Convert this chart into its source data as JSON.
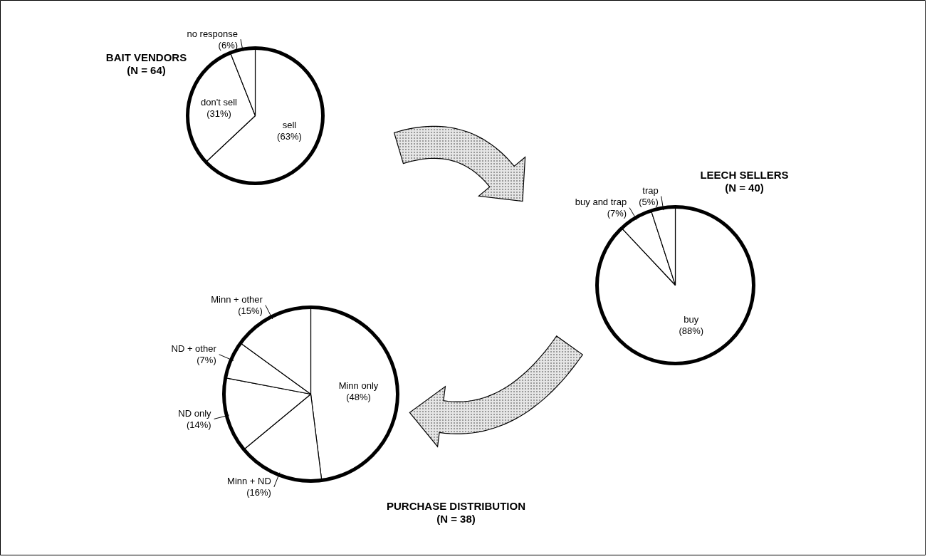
{
  "chart_data": [
    {
      "type": "pie",
      "title": "BAIT VENDORS",
      "subtitle": "(N = 64)",
      "categories": [
        "sell",
        "don't sell",
        "no response"
      ],
      "values": [
        63,
        31,
        6
      ],
      "colors": [
        "#ffffff",
        "#ffffff",
        "#ffffff"
      ],
      "value_labels": [
        "(63%)",
        "(31%)",
        "(6%)"
      ]
    },
    {
      "type": "pie",
      "title": "LEECH SELLERS",
      "subtitle": "(N = 40)",
      "categories": [
        "buy",
        "buy and trap",
        "trap"
      ],
      "values": [
        88,
        7,
        5
      ],
      "colors": [
        "#ffffff",
        "#ffffff",
        "#ffffff"
      ],
      "value_labels": [
        "(88%)",
        "(7%)",
        "(5%)"
      ]
    },
    {
      "type": "pie",
      "title": "PURCHASE DISTRIBUTION",
      "subtitle": "(N = 38)",
      "categories": [
        "Minn only",
        "Minn + ND",
        "ND only",
        "ND + other",
        "Minn + other"
      ],
      "values": [
        48,
        16,
        14,
        7,
        15
      ],
      "colors": [
        "#ffffff",
        "#ffffff",
        "#ffffff",
        "#ffffff",
        "#ffffff"
      ],
      "value_labels": [
        "(48%)",
        "(16%)",
        "(14%)",
        "(7%)",
        "(15%)"
      ]
    }
  ]
}
